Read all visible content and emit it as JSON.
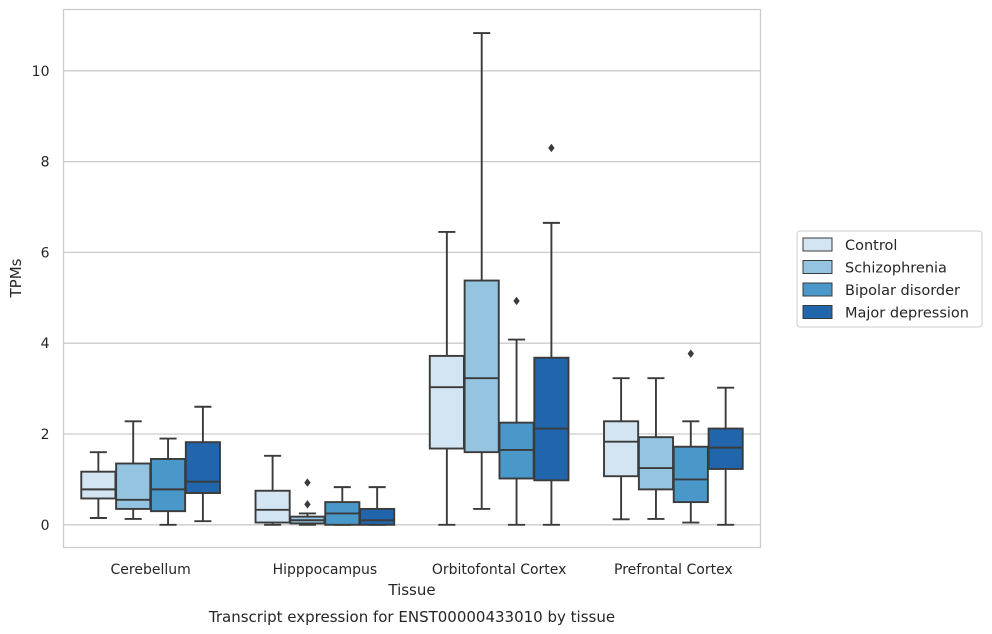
{
  "chart_data": {
    "type": "box",
    "title": "Transcript expression for ENST00000433010 by tissue",
    "xlabel": "Tissue",
    "ylabel": "TPMs",
    "ylim": [
      -0.5,
      11.35
    ],
    "yticks": [
      0,
      2,
      4,
      6,
      8,
      10
    ],
    "grid": "horizontal",
    "legend_position": "right",
    "categories": [
      "Cerebellum",
      "Hipppocampus",
      "Orbitofontal Cortex",
      "Prefrontal Cortex"
    ],
    "series": [
      {
        "name": "Control",
        "color": "#d3e4f3",
        "boxes": [
          {
            "whislo": 0.15,
            "q1": 0.58,
            "med": 0.78,
            "q3": 1.17,
            "whishi": 1.6,
            "fliers": []
          },
          {
            "whislo": 0.0,
            "q1": 0.05,
            "med": 0.33,
            "q3": 0.75,
            "whishi": 1.52,
            "fliers": []
          },
          {
            "whislo": 0.0,
            "q1": 1.68,
            "med": 3.03,
            "q3": 3.72,
            "whishi": 6.45,
            "fliers": []
          },
          {
            "whislo": 0.12,
            "q1": 1.07,
            "med": 1.83,
            "q3": 2.28,
            "whishi": 3.23,
            "fliers": []
          }
        ]
      },
      {
        "name": "Schizophrenia",
        "color": "#94c4df",
        "boxes": [
          {
            "whislo": 0.13,
            "q1": 0.35,
            "med": 0.55,
            "q3": 1.35,
            "whishi": 2.28,
            "fliers": []
          },
          {
            "whislo": 0.0,
            "q1": 0.03,
            "med": 0.1,
            "q3": 0.18,
            "whishi": 0.25,
            "fliers": [
              0.45,
              0.93
            ]
          },
          {
            "whislo": 0.35,
            "q1": 1.6,
            "med": 3.23,
            "q3": 5.38,
            "whishi": 10.83,
            "fliers": []
          },
          {
            "whislo": 0.13,
            "q1": 0.78,
            "med": 1.25,
            "q3": 1.93,
            "whishi": 3.23,
            "fliers": []
          }
        ]
      },
      {
        "name": "Bipolar disorder",
        "color": "#4a98c9",
        "boxes": [
          {
            "whislo": 0.0,
            "q1": 0.3,
            "med": 0.78,
            "q3": 1.45,
            "whishi": 1.9,
            "fliers": []
          },
          {
            "whislo": 0.0,
            "q1": 0.0,
            "med": 0.25,
            "q3": 0.5,
            "whishi": 0.83,
            "fliers": []
          },
          {
            "whislo": 0.0,
            "q1": 1.02,
            "med": 1.65,
            "q3": 2.25,
            "whishi": 4.08,
            "fliers": [
              4.93
            ]
          },
          {
            "whislo": 0.05,
            "q1": 0.5,
            "med": 1.0,
            "q3": 1.72,
            "whishi": 2.28,
            "fliers": [
              3.77
            ]
          }
        ]
      },
      {
        "name": "Major depression",
        "color": "#2166ac",
        "boxes": [
          {
            "whislo": 0.08,
            "q1": 0.7,
            "med": 0.95,
            "q3": 1.82,
            "whishi": 2.6,
            "fliers": []
          },
          {
            "whislo": 0.0,
            "q1": 0.0,
            "med": 0.1,
            "q3": 0.35,
            "whishi": 0.83,
            "fliers": []
          },
          {
            "whislo": 0.0,
            "q1": 0.98,
            "med": 2.12,
            "q3": 3.68,
            "whishi": 6.65,
            "fliers": [
              8.3
            ]
          },
          {
            "whislo": 0.0,
            "q1": 1.23,
            "med": 1.7,
            "q3": 2.12,
            "whishi": 3.02,
            "fliers": []
          }
        ]
      }
    ]
  }
}
